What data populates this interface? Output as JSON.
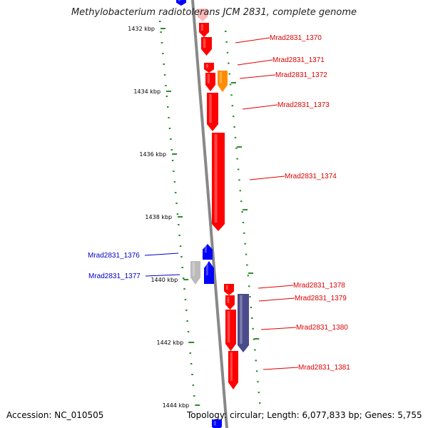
{
  "title": "Methylobacterium radiotolerans JCM 2831, complete genome",
  "footer": {
    "accession": "Accession: NC_010505",
    "summary": "Topology: circular; Length: 6,077,833 bp; Genes: 5,755"
  },
  "ruler": {
    "labels": [
      "1432 kbp",
      "1434 kbp",
      "1436 kbp",
      "1438 kbp",
      "1440 kbp",
      "1442 kbp",
      "1444 kbp"
    ]
  },
  "colors": {
    "forward": "#ff0000",
    "reverse": "#0000ff",
    "orange": "#ff8c00",
    "grey": "#bbbbbb",
    "slate": "#4b4b8c",
    "ruler": "#2e8b2e",
    "backbone": "#888888"
  },
  "genes": [
    {
      "label": "Mrad2831_1370",
      "strand": "forward",
      "color": "#ff0000"
    },
    {
      "label": "Mrad2831_1371",
      "strand": "forward",
      "color": "#ff0000"
    },
    {
      "label": "Mrad2831_1372",
      "strand": "forward",
      "color": "#ff8c00"
    },
    {
      "label": "Mrad2831_1373",
      "strand": "forward",
      "color": "#ff0000"
    },
    {
      "label": "Mrad2831_1374",
      "strand": "forward",
      "color": "#ff0000"
    },
    {
      "label": "Mrad2831_1376",
      "strand": "reverse",
      "color": "#0000ff"
    },
    {
      "label": "Mrad2831_1377",
      "strand": "reverse",
      "color": "#0000ff"
    },
    {
      "label": "Mrad2831_1378",
      "strand": "forward",
      "color": "#ff0000"
    },
    {
      "label": "Mrad2831_1379",
      "strand": "forward",
      "color": "#ff0000"
    },
    {
      "label": "Mrad2831_1380",
      "strand": "forward",
      "color": "#ff0000"
    },
    {
      "label": "Mrad2831_1381",
      "strand": "forward",
      "color": "#ff0000"
    }
  ]
}
